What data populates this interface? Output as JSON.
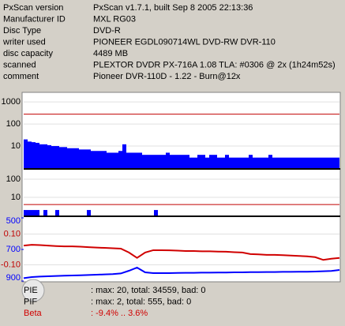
{
  "info": [
    {
      "label": "PxScan version",
      "value": "PxScan v1.7.1, built Sep  8 2005 22:13:36"
    },
    {
      "label": "Manufacturer ID",
      "value": "MXL RG03"
    },
    {
      "label": "Disc Type",
      "value": "DVD-R"
    },
    {
      "label": "writer used",
      "value": "PIONEER EGDL090714WL DVD-RW DVR-110"
    },
    {
      "label": "disc capacity",
      "value": "4489 MB"
    },
    {
      "label": "scanned",
      "value": "PLEXTOR DVDR PX-716A 1.08 TLA: #0306 @ 2x (1h24m52s)"
    },
    {
      "label": "comment",
      "value": "Pioneer DVR-110D - 1.22 - Burn@12x"
    }
  ],
  "chart_data": [
    {
      "type": "bar",
      "log_scale": true,
      "ylim": [
        1,
        2500
      ],
      "yticks": [
        1000,
        100,
        10
      ],
      "limit": 280,
      "limit_color": "#c00000",
      "color": "#0000ff",
      "values": [
        20,
        16,
        15,
        14,
        12,
        12,
        11,
        10,
        10,
        9,
        9,
        8,
        8,
        8,
        7,
        7,
        7,
        6,
        6,
        6,
        6,
        5,
        5,
        5,
        6,
        12,
        5,
        5,
        5,
        5,
        4,
        4,
        4,
        4,
        4,
        4,
        5,
        4,
        4,
        4,
        4,
        4,
        3,
        3,
        4,
        4,
        3,
        4,
        4,
        3,
        3,
        4,
        3,
        3,
        3,
        3,
        3,
        4,
        3,
        3,
        3,
        3,
        4,
        3,
        3,
        3,
        3,
        3,
        3,
        3,
        3,
        3,
        3,
        3,
        3,
        3,
        3,
        3,
        3,
        3
      ]
    },
    {
      "type": "bar",
      "log_scale": true,
      "ylim": [
        1,
        330
      ],
      "yticks": [
        100,
        10
      ],
      "limit": 4,
      "limit_color": "#c00000",
      "color": "#0000ff",
      "values": [
        2,
        2,
        2,
        2,
        1,
        2,
        1,
        1,
        2,
        1,
        1,
        1,
        1,
        1,
        1,
        1,
        2,
        1,
        1,
        1,
        1,
        1,
        1,
        1,
        1,
        1,
        1,
        1,
        1,
        1,
        1,
        1,
        1,
        2,
        1,
        1,
        1,
        1,
        1,
        1,
        1,
        1,
        1,
        1,
        1,
        1,
        1,
        1,
        1,
        1,
        1,
        1,
        1,
        1,
        1,
        1,
        1,
        1,
        1,
        1,
        1,
        1,
        1,
        1,
        1,
        1,
        1,
        1,
        1,
        1,
        1,
        1,
        1,
        1,
        1,
        1,
        1,
        1,
        1,
        1
      ]
    },
    {
      "type": "line",
      "ylim": [
        -0.205,
        0.205
      ],
      "yticks": [
        {
          "value": 0.1,
          "label": "0.10"
        },
        {
          "value": -0.1,
          "label": "-0.10"
        }
      ],
      "ytick_color": "#c00000",
      "y2lim": [
        500,
        900
      ],
      "y2ticks": [
        500,
        700,
        900
      ],
      "y2tick_color": "#0000ff",
      "series": [
        {
          "name": "Beta",
          "color": "#d00000",
          "values": [
            0.025,
            0.03,
            0.028,
            0.025,
            0.022,
            0.02,
            0.02,
            0.018,
            0.015,
            0.012,
            0.01,
            0.008,
            0.005,
            -0.02,
            -0.055,
            -0.02,
            -0.005,
            -0.005,
            -0.006,
            -0.008,
            -0.01,
            -0.01,
            -0.012,
            -0.012,
            -0.014,
            -0.015,
            -0.018,
            -0.02,
            -0.03,
            -0.032,
            -0.035,
            -0.035,
            -0.037,
            -0.04,
            -0.042,
            -0.045,
            -0.05,
            -0.068,
            -0.06,
            -0.055
          ]
        },
        {
          "name": "Jitter",
          "axis": "y2",
          "color": "#0000ff",
          "values": [
            882,
            875,
            872,
            870,
            868,
            866,
            865,
            864,
            862,
            860,
            858,
            856,
            852,
            835,
            815,
            845,
            850,
            850,
            850,
            849,
            848,
            848,
            847,
            847,
            846,
            846,
            845,
            845,
            844,
            844,
            843,
            843,
            842,
            842,
            841,
            841,
            840,
            838,
            836,
            830
          ]
        }
      ]
    }
  ],
  "stats": [
    {
      "label": "PIE",
      "text": ": max: 20, total: 34559, bad: 0",
      "color": "#000000"
    },
    {
      "label": "PIF",
      "text": ": max: 2, total: 555, bad: 0",
      "color": "#000000"
    },
    {
      "label": "Beta",
      "text": ": -9.4% .. 3.6%",
      "color": "#d00000"
    }
  ]
}
